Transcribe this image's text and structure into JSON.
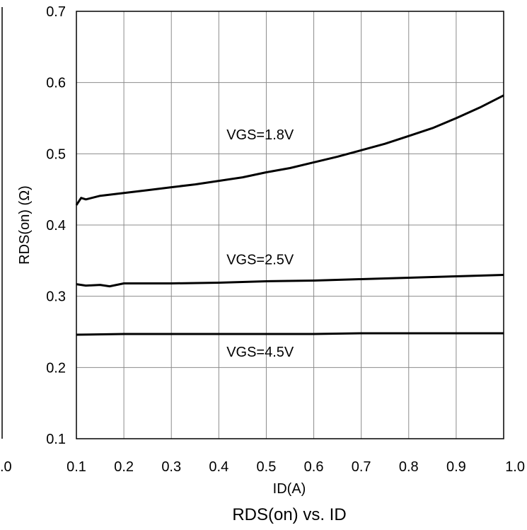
{
  "chart_data": {
    "type": "line",
    "title": "RDS(on) vs. ID",
    "xlabel": "ID(A)",
    "ylabel": "RDS(on) (Ω)",
    "xlim": [
      0.1,
      1.0
    ],
    "ylim": [
      0.1,
      0.7
    ],
    "x_ticks": [
      "0.1",
      "0.2",
      "0.3",
      "0.4",
      "0.5",
      "0.6",
      "0.7",
      "0.8",
      "0.9",
      "1.0"
    ],
    "y_ticks": [
      "0.1",
      "0.2",
      "0.3",
      "0.4",
      "0.5",
      "0.6",
      "0.7"
    ],
    "left_partial_tick": ".0",
    "grid": true,
    "legend": "none",
    "series": [
      {
        "name": "VGS=1.8V",
        "x": [
          0.1,
          0.11,
          0.12,
          0.15,
          0.2,
          0.25,
          0.3,
          0.35,
          0.4,
          0.45,
          0.5,
          0.55,
          0.6,
          0.65,
          0.7,
          0.75,
          0.8,
          0.85,
          0.9,
          0.95,
          1.0
        ],
        "values": [
          0.428,
          0.438,
          0.436,
          0.441,
          0.445,
          0.449,
          0.453,
          0.457,
          0.462,
          0.467,
          0.474,
          0.48,
          0.488,
          0.496,
          0.505,
          0.514,
          0.525,
          0.536,
          0.55,
          0.565,
          0.582
        ]
      },
      {
        "name": "VGS=2.5V",
        "x": [
          0.1,
          0.12,
          0.15,
          0.17,
          0.2,
          0.3,
          0.4,
          0.5,
          0.6,
          0.7,
          0.8,
          0.9,
          1.0
        ],
        "values": [
          0.317,
          0.315,
          0.316,
          0.314,
          0.318,
          0.318,
          0.319,
          0.321,
          0.322,
          0.324,
          0.326,
          0.328,
          0.33
        ]
      },
      {
        "name": "VGS=4.5V",
        "x": [
          0.1,
          0.2,
          0.3,
          0.4,
          0.5,
          0.6,
          0.7,
          0.8,
          0.9,
          1.0
        ],
        "values": [
          0.246,
          0.247,
          0.247,
          0.247,
          0.247,
          0.247,
          0.248,
          0.248,
          0.248,
          0.248
        ]
      }
    ]
  }
}
